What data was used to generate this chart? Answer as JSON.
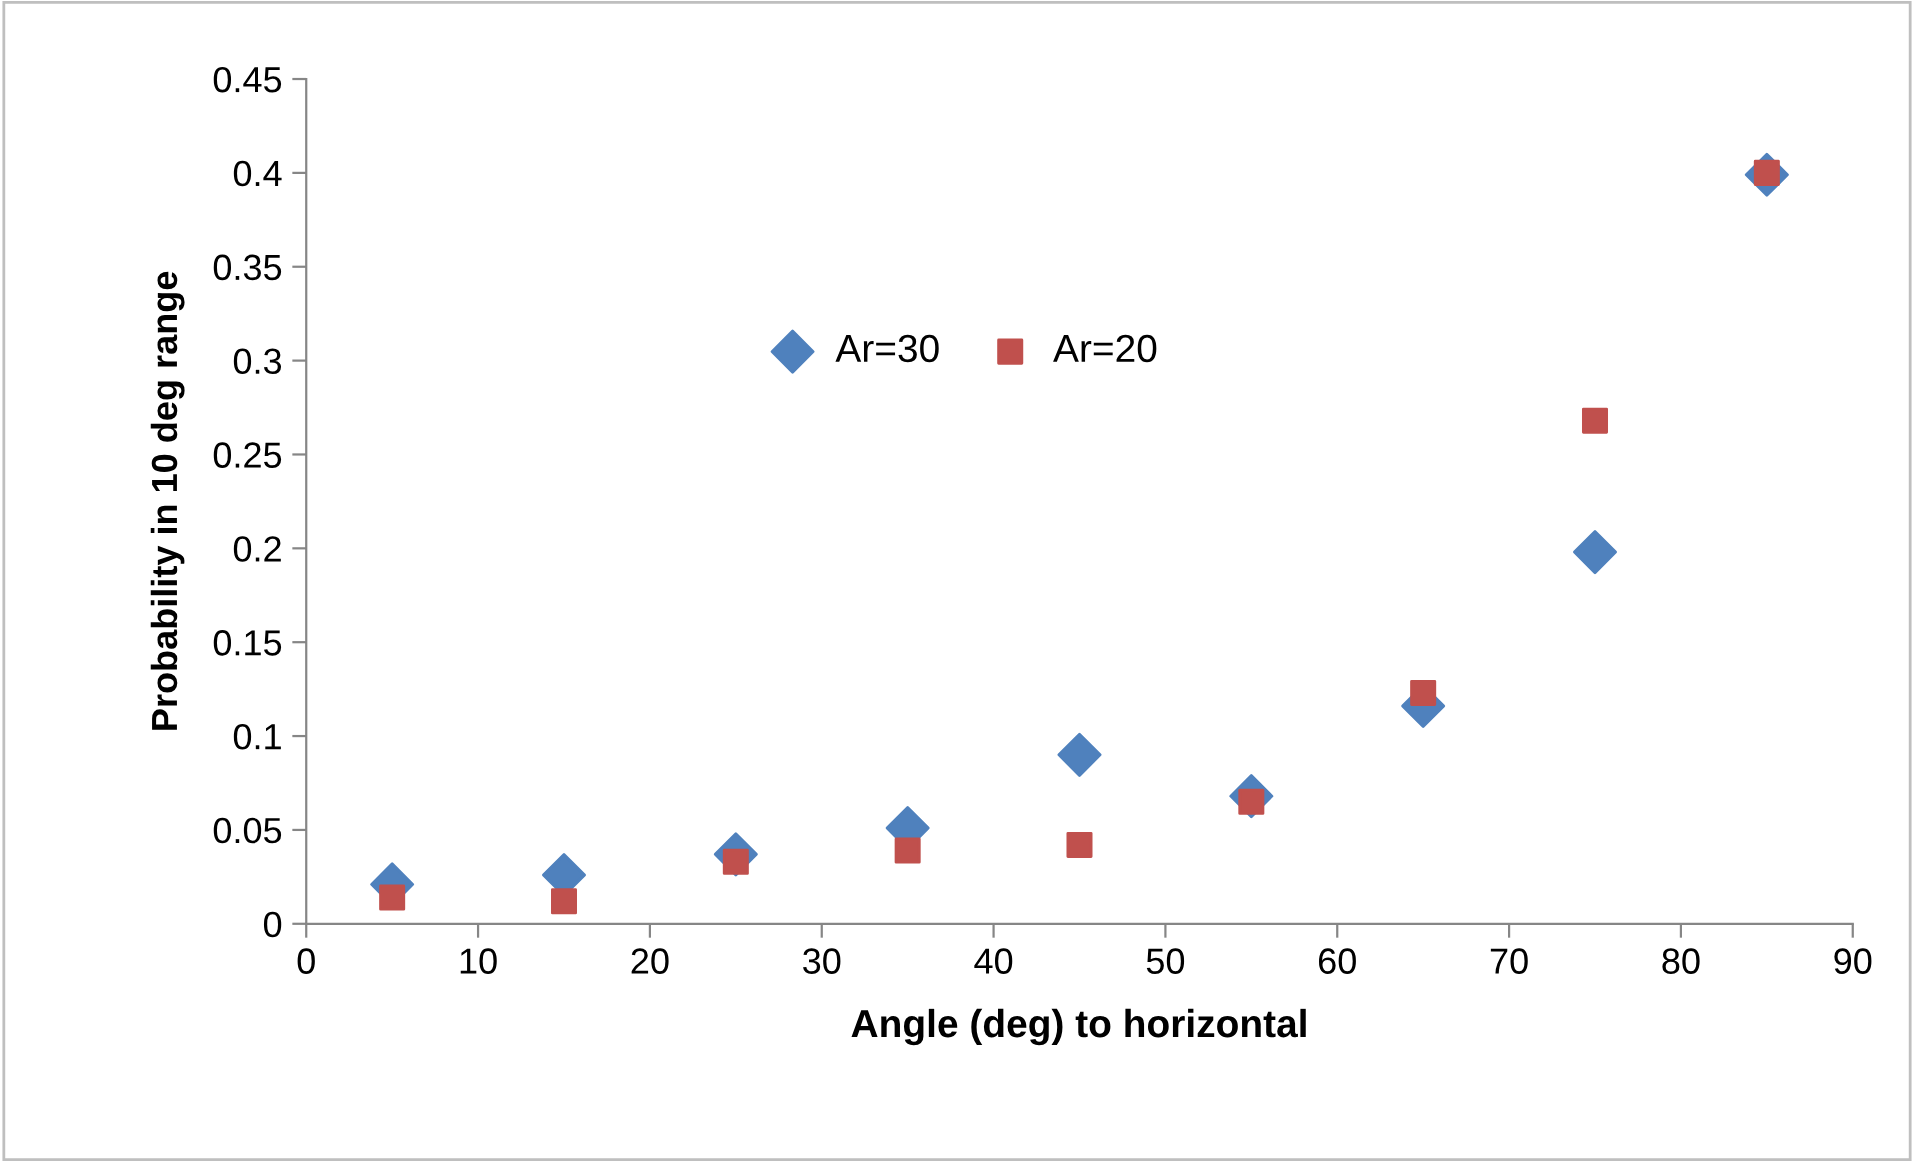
{
  "chart_data": {
    "type": "scatter",
    "xlabel": "Angle (deg) to horizontal",
    "ylabel": "Probability in 10 deg range",
    "x": [
      5,
      15,
      25,
      35,
      45,
      55,
      65,
      75,
      85
    ],
    "series": [
      {
        "name": "Ar=30",
        "color": "#4f81bd",
        "marker": "diamond",
        "values": [
          0.021,
          0.026,
          0.037,
          0.051,
          0.09,
          0.068,
          0.116,
          0.198,
          0.399
        ]
      },
      {
        "name": "Ar=20",
        "color": "#c0504d",
        "marker": "square",
        "values": [
          0.014,
          0.012,
          0.033,
          0.039,
          0.042,
          0.065,
          0.123,
          0.268,
          0.4
        ]
      }
    ],
    "xlim": [
      0,
      90
    ],
    "xticks": [
      0,
      10,
      20,
      30,
      40,
      50,
      60,
      70,
      80,
      90
    ],
    "ylim": [
      0,
      0.45
    ],
    "yticks": [
      0,
      0.05,
      0.1,
      0.15,
      0.2,
      0.25,
      0.3,
      0.35,
      0.4,
      0.45
    ],
    "grid": false,
    "legend": "top center"
  }
}
